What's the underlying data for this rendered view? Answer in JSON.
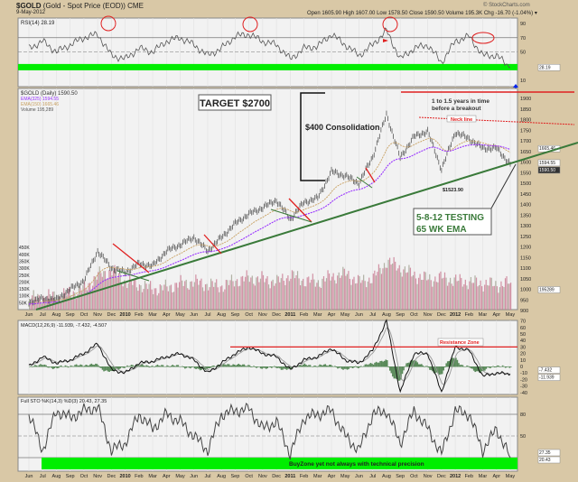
{
  "header": {
    "symbol": "$GOLD",
    "name": "(Gold - Spot Price (EOD)) CME",
    "date": "9-May-2012",
    "copyright": "© StockCharts.com",
    "quote": "Open 1605.90  High 1607.00  Low 1578.50  Close 1590.50  Volume 195.3K  Chg -16.70 (-1.04%) ▾"
  },
  "chart_data": [
    {
      "type": "line",
      "title": "RSI(14) 28.19",
      "panel": "rsi",
      "current_tag": "28.19",
      "ylim": [
        0,
        100
      ],
      "yticks": [
        90,
        70,
        50,
        10
      ],
      "levels": [
        70,
        50,
        30
      ],
      "x": [
        "Jun 2009",
        "Jul",
        "Aug",
        "Sep",
        "Oct",
        "Nov",
        "Dec",
        "Jan 2010",
        "Feb",
        "Mar",
        "Apr",
        "May",
        "Jun",
        "Jul",
        "Aug",
        "Sep",
        "Oct",
        "Nov",
        "Dec",
        "Jan 2011",
        "Feb",
        "Mar",
        "Apr",
        "May",
        "Jun",
        "Jul",
        "Aug",
        "Sep",
        "Oct",
        "Nov",
        "Dec",
        "Jan 2012",
        "Feb",
        "Mar",
        "Apr",
        "May"
      ],
      "values": [
        55,
        65,
        50,
        60,
        70,
        75,
        45,
        40,
        55,
        50,
        65,
        70,
        60,
        45,
        55,
        72,
        75,
        65,
        60,
        40,
        55,
        58,
        75,
        60,
        45,
        60,
        80,
        40,
        55,
        60,
        35,
        65,
        72,
        45,
        45,
        28
      ]
    },
    {
      "type": "line",
      "title": "$GOLD (Daily) 1590.50",
      "panel": "price",
      "ylim": [
        900,
        1900
      ],
      "yticks": [
        900,
        950,
        1000,
        1050,
        1100,
        1150,
        1200,
        1250,
        1300,
        1350,
        1400,
        1450,
        1500,
        1550,
        1600,
        1650,
        1700,
        1750,
        1800,
        1850,
        1900
      ],
      "legend": [
        {
          "label": "$GOLD (Daily) 1590.50",
          "color": "#333333"
        },
        {
          "label": "EMA(325) 1594.55",
          "color": "#9933ff"
        },
        {
          "label": "EMA(150) 1665.46",
          "color": "#c8a060"
        },
        {
          "label": "Volume 195,289",
          "color": "#555555"
        }
      ],
      "price_tags": [
        "1665.46",
        "1594.55",
        "1590.50"
      ],
      "volume_tag": "195289",
      "values": [
        940,
        955,
        950,
        1000,
        1040,
        1180,
        1100,
        1080,
        1120,
        1110,
        1180,
        1210,
        1245,
        1180,
        1245,
        1310,
        1355,
        1385,
        1420,
        1330,
        1410,
        1430,
        1555,
        1535,
        1500,
        1625,
        1825,
        1620,
        1720,
        1745,
        1565,
        1740,
        1710,
        1665,
        1665,
        1590
      ],
      "volume_k": [
        80,
        90,
        100,
        120,
        150,
        250,
        280,
        200,
        180,
        150,
        160,
        190,
        200,
        180,
        170,
        210,
        230,
        220,
        200,
        250,
        210,
        200,
        240,
        260,
        200,
        230,
        350,
        300,
        250,
        220,
        230,
        210,
        200,
        190,
        180,
        195
      ],
      "volume_ticks": [
        "450K",
        "400K",
        "350K",
        "300K",
        "250K",
        "200K",
        "150K",
        "100K",
        "50K"
      ],
      "annotations": {
        "target": "TARGET $2700",
        "consolidation": "$400 Consolidation",
        "time_note_1": "1 to 1.5 years in time",
        "time_note_2": "before a breakout",
        "neck_line": "Neck line",
        "low_label": "$1523.90",
        "testing_1": "5-8-12 TESTING",
        "testing_2": "65 WK EMA"
      }
    },
    {
      "type": "line",
      "title": "MACD(12,26,9) -11.939, -7.432, -4.507",
      "panel": "macd",
      "ylim": [
        -45,
        75
      ],
      "yticks": [
        70,
        60,
        50,
        40,
        30,
        20,
        10,
        0,
        -10,
        -20,
        -30,
        -40
      ],
      "tags": [
        "-7.432",
        "-11.939"
      ],
      "resistance_label": "Resistance Zone",
      "resistance_level": 30,
      "values": [
        0,
        15,
        5,
        10,
        20,
        35,
        -5,
        -10,
        5,
        8,
        15,
        20,
        10,
        -10,
        5,
        20,
        30,
        20,
        15,
        -5,
        10,
        15,
        28,
        10,
        5,
        25,
        70,
        -40,
        20,
        20,
        -40,
        30,
        25,
        -15,
        -10,
        -12
      ]
    },
    {
      "type": "line",
      "title": "Full STO %K(14,3) %D(3) 20.43, 27.35",
      "panel": "sto",
      "ylim": [
        0,
        100
      ],
      "yticks": [
        80,
        50
      ],
      "tags": [
        "27.35",
        "20.43"
      ],
      "buy_zone_label": "BuyZone yet not always with technical precision",
      "values": [
        80,
        30,
        85,
        75,
        85,
        90,
        30,
        40,
        80,
        60,
        80,
        70,
        50,
        30,
        80,
        85,
        88,
        60,
        70,
        25,
        75,
        80,
        85,
        50,
        30,
        80,
        85,
        40,
        85,
        60,
        25,
        85,
        80,
        30,
        60,
        20
      ]
    }
  ],
  "x_axis_labels": [
    "Jun",
    "Jul",
    "Aug",
    "Sep",
    "Oct",
    "Nov",
    "Dec",
    "2010",
    "Feb",
    "Mar",
    "Apr",
    "May",
    "Jun",
    "Jul",
    "Aug",
    "Sep",
    "Oct",
    "Nov",
    "Dec",
    "2011",
    "Feb",
    "Mar",
    "Apr",
    "May",
    "Jun",
    "Jul",
    "Aug",
    "Sep",
    "Oct",
    "Nov",
    "Dec",
    "2012",
    "Feb",
    "Mar",
    "Apr",
    "May"
  ],
  "colors": {
    "buy_zone": "#00ee00",
    "annotation_red": "#e02020",
    "trend_green": "#3a7a3a",
    "ema_long": "#9933ff",
    "ema_short": "#c8a060",
    "macd_hist": "#5a8a5a",
    "volume": "#c87890"
  }
}
